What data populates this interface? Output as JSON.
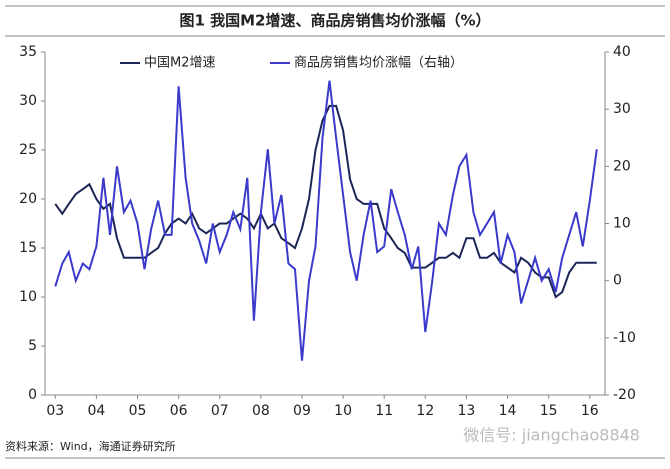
{
  "title": "图1 我国M2增速、商品房销售均价涨幅（%）",
  "source": "资料来源：Wind，海通证券研究所",
  "watermark": "微信号: jiangchao8848",
  "chart_data": {
    "type": "line",
    "x": [
      3.0,
      3.17,
      3.33,
      3.5,
      3.67,
      3.83,
      4.0,
      4.17,
      4.33,
      4.5,
      4.67,
      4.83,
      5.0,
      5.17,
      5.33,
      5.5,
      5.67,
      5.83,
      6.0,
      6.17,
      6.33,
      6.5,
      6.67,
      6.83,
      7.0,
      7.17,
      7.33,
      7.5,
      7.67,
      7.83,
      8.0,
      8.17,
      8.33,
      8.5,
      8.67,
      8.83,
      9.0,
      9.17,
      9.33,
      9.5,
      9.67,
      9.83,
      10.0,
      10.17,
      10.33,
      10.5,
      10.67,
      10.83,
      11.0,
      11.17,
      11.33,
      11.5,
      11.67,
      11.83,
      12.0,
      12.17,
      12.33,
      12.5,
      12.67,
      12.83,
      13.0,
      13.17,
      13.33,
      13.5,
      13.67,
      13.83,
      14.0,
      14.17,
      14.33,
      14.5,
      14.67,
      14.83,
      15.0,
      15.17,
      15.33,
      15.5,
      15.67,
      15.83,
      16.0,
      16.17
    ],
    "series": [
      {
        "name": "中国M2增速",
        "color": "#1c2656",
        "values": [
          19.5,
          18.5,
          19.5,
          20.5,
          21,
          21.5,
          20,
          19,
          19.5,
          16,
          14,
          14,
          14,
          14,
          14.5,
          15,
          16.5,
          17.5,
          18,
          17.5,
          18.5,
          17,
          16.5,
          17,
          17.5,
          17.5,
          18,
          18.5,
          18,
          17,
          18.5,
          17,
          17.5,
          16,
          15.5,
          15,
          17,
          20,
          25,
          28,
          29.5,
          29.5,
          27,
          22,
          20,
          19.5,
          19.5,
          19.5,
          17,
          16,
          15,
          14.5,
          13,
          13,
          13,
          13.5,
          14,
          14,
          14.5,
          14,
          16,
          16,
          14,
          14,
          14.5,
          13.5,
          13,
          12.5,
          14,
          13.5,
          12.5,
          12,
          12,
          10,
          10.5,
          12.5,
          13.5,
          13.5,
          13.5,
          13.5
        ]
      },
      {
        "name": "商品房销售均价涨幅（右轴）",
        "color": "#3a3acc",
        "axis": "y2",
        "values": [
          -1,
          3,
          5,
          0,
          3,
          2,
          6,
          18,
          8,
          20,
          12,
          14,
          10,
          2,
          9,
          14,
          8,
          8,
          34,
          18,
          10,
          7,
          3,
          10,
          5,
          8,
          12,
          9,
          18,
          -7,
          12,
          23,
          10,
          15,
          3,
          2,
          -14,
          0,
          6,
          25,
          35,
          25,
          15,
          5,
          0,
          8,
          14,
          5,
          6,
          16,
          12,
          8,
          2,
          6,
          -9,
          0,
          10,
          8,
          15,
          20,
          22,
          12,
          8,
          10,
          12,
          3,
          8,
          5,
          -4,
          0,
          4,
          0,
          2,
          -2,
          4,
          8,
          12,
          6,
          14,
          23
        ]
      }
    ],
    "xlim": [
      2.75,
      16.37
    ],
    "xticks": [
      {
        "value": 3,
        "label": "03"
      },
      {
        "value": 4,
        "label": "04"
      },
      {
        "value": 5,
        "label": "05"
      },
      {
        "value": 6,
        "label": "06"
      },
      {
        "value": 7,
        "label": "07"
      },
      {
        "value": 8,
        "label": "08"
      },
      {
        "value": 9,
        "label": "09"
      },
      {
        "value": 10,
        "label": "10"
      },
      {
        "value": 11,
        "label": "11"
      },
      {
        "value": 12,
        "label": "12"
      },
      {
        "value": 13,
        "label": "13"
      },
      {
        "value": 14,
        "label": "14"
      },
      {
        "value": 15,
        "label": "15"
      },
      {
        "value": 16,
        "label": "16"
      }
    ],
    "ylim": [
      0,
      35
    ],
    "yticks": [
      0,
      5,
      10,
      15,
      20,
      25,
      30,
      35
    ],
    "y2lim": [
      -20,
      40
    ],
    "y2ticks": [
      -20,
      -10,
      0,
      10,
      20,
      30,
      40
    ]
  }
}
